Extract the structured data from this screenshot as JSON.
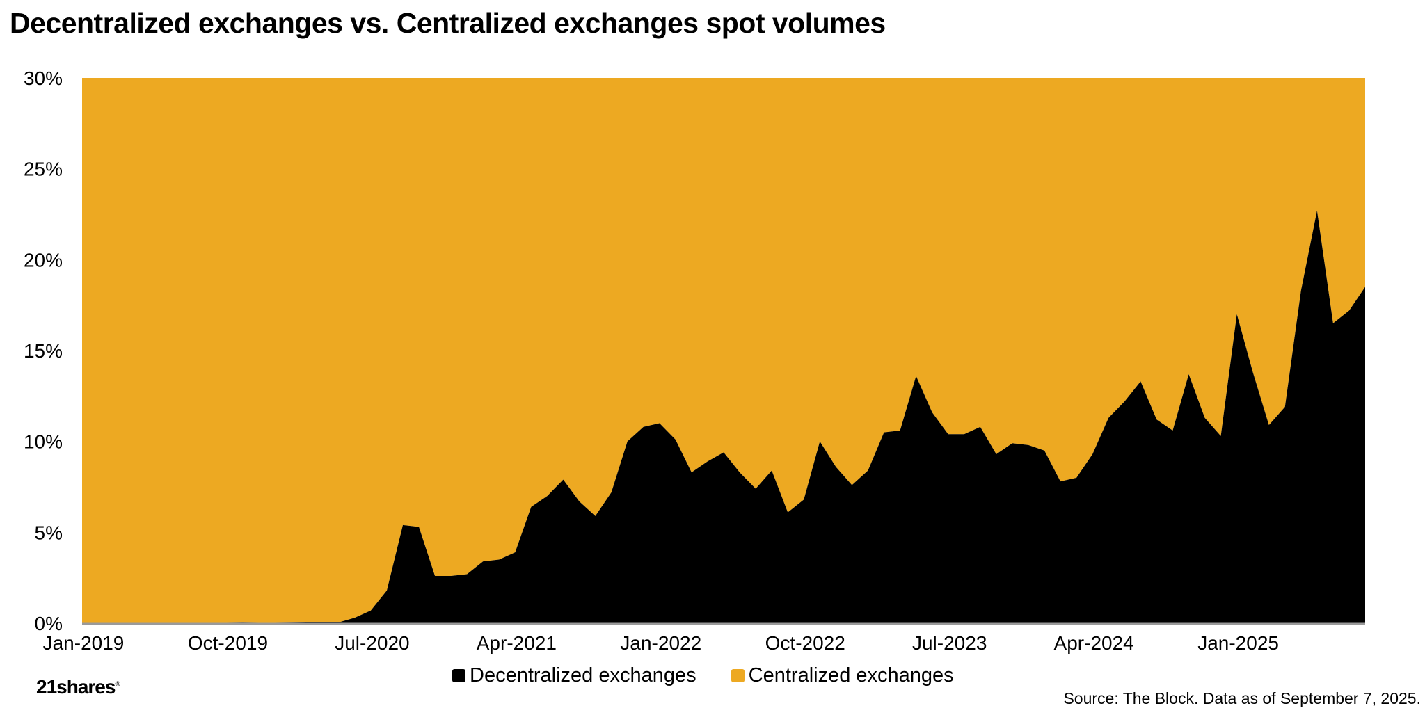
{
  "title": "Decentralized exchanges vs. Centralized exchanges spot volumes",
  "colors": {
    "dex": "#000000",
    "cex": "#EDA922",
    "axis": "#9a9a9a"
  },
  "legend": {
    "dex_label": "Decentralized exchanges",
    "cex_label": "Centralized exchanges"
  },
  "brand": "21shares",
  "source": "Source: The Block. Data as of September 7, 2025.",
  "chart_data": {
    "type": "area",
    "stacked": true,
    "y_tick_labels": [
      "0%",
      "5%",
      "10%",
      "15%",
      "20%",
      "25%",
      "30%"
    ],
    "y_ticks": [
      0,
      5,
      10,
      15,
      20,
      25,
      30
    ],
    "ylim": [
      0,
      30
    ],
    "x_tick_labels": [
      "Jan-2019",
      "Oct-2019",
      "Jul-2020",
      "Apr-2021",
      "Jan-2022",
      "Oct-2022",
      "Jul-2023",
      "Apr-2024",
      "Jan-2025"
    ],
    "x_tick_index": [
      0,
      9,
      18,
      27,
      36,
      45,
      54,
      63,
      72
    ],
    "x": [
      "Jan-2019",
      "Feb-2019",
      "Mar-2019",
      "Apr-2019",
      "May-2019",
      "Jun-2019",
      "Jul-2019",
      "Aug-2019",
      "Sep-2019",
      "Oct-2019",
      "Nov-2019",
      "Dec-2019",
      "Jan-2020",
      "Feb-2020",
      "Mar-2020",
      "Apr-2020",
      "May-2020",
      "Jun-2020",
      "Jul-2020",
      "Aug-2020",
      "Sep-2020",
      "Oct-2020",
      "Nov-2020",
      "Dec-2020",
      "Jan-2021",
      "Feb-2021",
      "Mar-2021",
      "Apr-2021",
      "May-2021",
      "Jun-2021",
      "Jul-2021",
      "Aug-2021",
      "Sep-2021",
      "Oct-2021",
      "Nov-2021",
      "Dec-2021",
      "Jan-2022",
      "Feb-2022",
      "Mar-2022",
      "Apr-2022",
      "May-2022",
      "Jun-2022",
      "Jul-2022",
      "Aug-2022",
      "Sep-2022",
      "Oct-2022",
      "Nov-2022",
      "Dec-2022",
      "Jan-2023",
      "Feb-2023",
      "Mar-2023",
      "Apr-2023",
      "May-2023",
      "Jun-2023",
      "Jul-2023",
      "Aug-2023",
      "Sep-2023",
      "Oct-2023",
      "Nov-2023",
      "Dec-2023",
      "Jan-2024",
      "Feb-2024",
      "Mar-2024",
      "Apr-2024",
      "May-2024",
      "Jun-2024",
      "Jul-2024",
      "Aug-2024",
      "Sep-2024",
      "Oct-2024",
      "Nov-2024",
      "Dec-2024",
      "Jan-2025",
      "Feb-2025",
      "Mar-2025",
      "Apr-2025",
      "May-2025",
      "Jun-2025",
      "Jul-2025",
      "Aug-2025",
      "Sep-2025"
    ],
    "series": [
      {
        "name": "Decentralized exchanges",
        "values": [
          0.0,
          0.0,
          0.0,
          0.0,
          0.0,
          0.0,
          0.0,
          0.0,
          0.0,
          0.02,
          0.03,
          0.02,
          0.02,
          0.03,
          0.04,
          0.05,
          0.05,
          0.3,
          0.7,
          1.8,
          5.4,
          5.3,
          2.6,
          2.6,
          2.7,
          3.4,
          3.5,
          3.9,
          6.4,
          7.0,
          7.9,
          6.7,
          5.9,
          7.2,
          10.0,
          10.8,
          11.0,
          10.1,
          8.3,
          8.9,
          9.4,
          8.3,
          7.4,
          8.4,
          6.1,
          6.8,
          10.0,
          8.6,
          7.6,
          8.4,
          10.5,
          10.6,
          13.6,
          11.6,
          10.4,
          10.4,
          10.8,
          9.3,
          9.9,
          9.8,
          9.5,
          7.8,
          8.0,
          9.3,
          11.3,
          12.2,
          13.3,
          11.2,
          10.6,
          13.7,
          11.3,
          10.3,
          17.0,
          13.8,
          10.9,
          11.9,
          18.3,
          22.7,
          16.5,
          17.2,
          18.5
        ]
      },
      {
        "name": "Centralized exchanges",
        "fills_to": 30
      }
    ]
  }
}
